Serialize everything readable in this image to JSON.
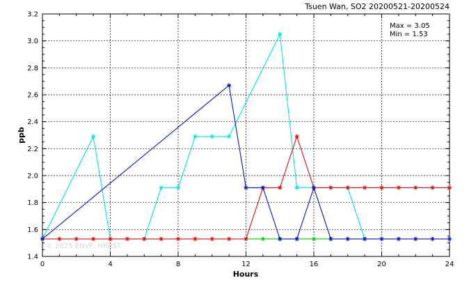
{
  "chart_data": {
    "type": "line",
    "title": "Tsuen Wan, SO2 20200521-20200524",
    "xlabel": "Hours",
    "ylabel": "ppb",
    "xlim": [
      0,
      24
    ],
    "ylim": [
      1.4,
      3.2
    ],
    "xticks": [
      0,
      4,
      8,
      12,
      16,
      20,
      24
    ],
    "yticks": [
      1.4,
      1.6,
      1.8,
      2.0,
      2.2,
      2.4,
      2.6,
      2.8,
      3.0,
      3.2
    ],
    "grid": true,
    "stats": {
      "max_label": "Max = 3.05",
      "min_label": "Min = 1.53"
    },
    "watermark": "© 2025 ENVF, HKUST",
    "series": [
      {
        "color": "#00e5e5",
        "x": [
          0,
          3,
          4,
          6,
          7,
          8,
          9,
          10,
          11,
          14,
          15,
          16,
          17,
          18,
          19
        ],
        "y": [
          1.53,
          2.29,
          1.53,
          1.53,
          1.91,
          1.91,
          2.29,
          2.29,
          2.29,
          3.05,
          1.91,
          1.91,
          1.91,
          1.91,
          1.53
        ]
      },
      {
        "color": "#00d000",
        "x": [
          12,
          13,
          14,
          15,
          16,
          17
        ],
        "y": [
          1.53,
          1.53,
          1.53,
          1.53,
          1.53,
          1.53
        ]
      },
      {
        "color": "#e01010",
        "x": [
          0,
          1,
          2,
          3,
          4,
          5,
          6,
          7,
          8,
          9,
          10,
          11,
          12,
          13,
          14,
          15,
          16,
          17,
          18,
          19,
          20,
          21,
          22,
          23,
          24
        ],
        "y": [
          1.53,
          1.53,
          1.53,
          1.53,
          1.53,
          1.53,
          1.53,
          1.53,
          1.53,
          1.53,
          1.53,
          1.53,
          1.53,
          1.91,
          1.91,
          2.29,
          1.91,
          1.91,
          1.91,
          1.91,
          1.91,
          1.91,
          1.91,
          1.91,
          1.91
        ]
      },
      {
        "color": "#0a14c8",
        "x": [
          0,
          11,
          12,
          13,
          14,
          15,
          16,
          17,
          18,
          19,
          20,
          21,
          22,
          23,
          24
        ],
        "y": [
          1.53,
          2.67,
          1.91,
          1.91,
          1.53,
          1.53,
          1.91,
          1.53,
          1.53,
          1.53,
          1.53,
          1.53,
          1.53,
          1.53,
          1.53
        ]
      }
    ]
  }
}
